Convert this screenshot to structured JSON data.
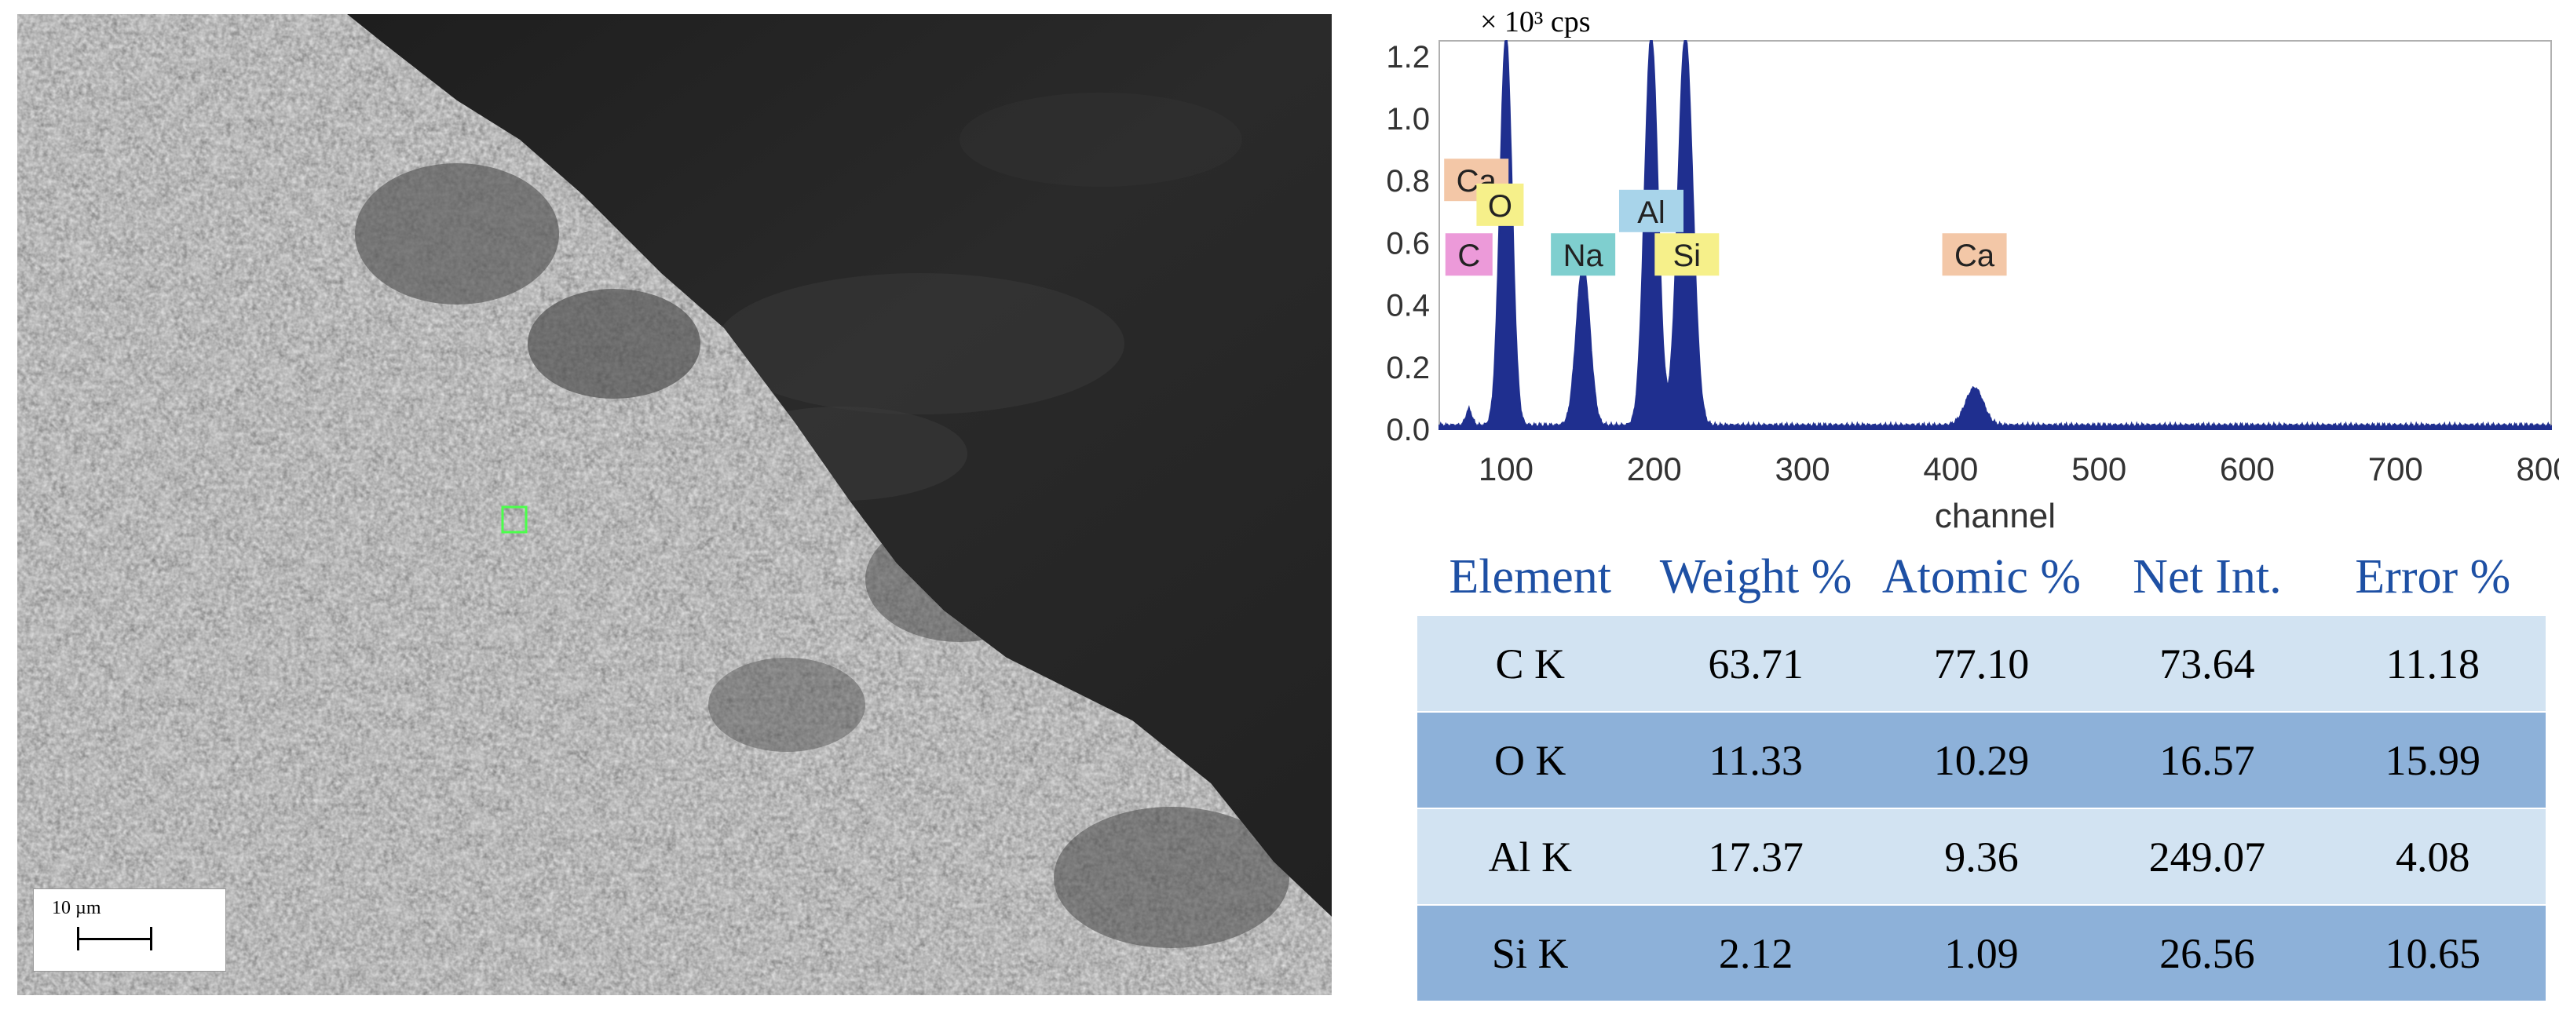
{
  "sem_image": {
    "scale_label": "10 µm"
  },
  "chart_data": {
    "type": "line",
    "y_unit_label": "× 10³ cps",
    "xlabel": "channel",
    "ylabel": "",
    "xlim": [
      55,
      805
    ],
    "ylim": [
      0,
      1.25
    ],
    "x_ticks": [
      100,
      200,
      300,
      400,
      500,
      600,
      700,
      800
    ],
    "y_ticks": [
      "0.0",
      "0.2",
      "0.4",
      "0.6",
      "0.8",
      "1.0",
      "1.2"
    ],
    "series_color": "#1f2f8f",
    "peaks": [
      {
        "x": 75,
        "y": 0.05,
        "width": 2.0
      },
      {
        "x": 100,
        "y": 1.25,
        "width": 4.0
      },
      {
        "x": 152,
        "y": 0.52,
        "width": 4.5
      },
      {
        "x": 198,
        "y": 1.25,
        "width": 4.5
      },
      {
        "x": 221,
        "y": 1.25,
        "width": 5.0
      },
      {
        "x": 416,
        "y": 0.12,
        "width": 6.0
      }
    ],
    "peak_labels": [
      {
        "text": "Ca",
        "x": 80,
        "y": 0.8,
        "color": "#f3c7a7"
      },
      {
        "text": "O",
        "x": 96,
        "y": 0.72,
        "color": "#f6f08a"
      },
      {
        "text": "C",
        "x": 75,
        "y": 0.56,
        "color": "#ec9ad9"
      },
      {
        "text": "Na",
        "x": 152,
        "y": 0.56,
        "color": "#7fcfcf"
      },
      {
        "text": "Al",
        "x": 198,
        "y": 0.7,
        "color": "#a8d4ea"
      },
      {
        "text": "Si",
        "x": 222,
        "y": 0.56,
        "color": "#f6f08a"
      },
      {
        "text": "Ca",
        "x": 416,
        "y": 0.56,
        "color": "#f3c7a7"
      }
    ]
  },
  "table": {
    "headers": [
      "Element",
      "Weight %",
      "Atomic %",
      "Net Int.",
      "Error %"
    ],
    "rows": [
      [
        "C K",
        "63.71",
        "77.10",
        "73.64",
        "11.18"
      ],
      [
        "O K",
        "11.33",
        "10.29",
        "16.57",
        "15.99"
      ],
      [
        "Al K",
        "17.37",
        "9.36",
        "249.07",
        "4.08"
      ],
      [
        "Si K",
        "2.12",
        "1.09",
        "26.56",
        "10.65"
      ]
    ]
  }
}
